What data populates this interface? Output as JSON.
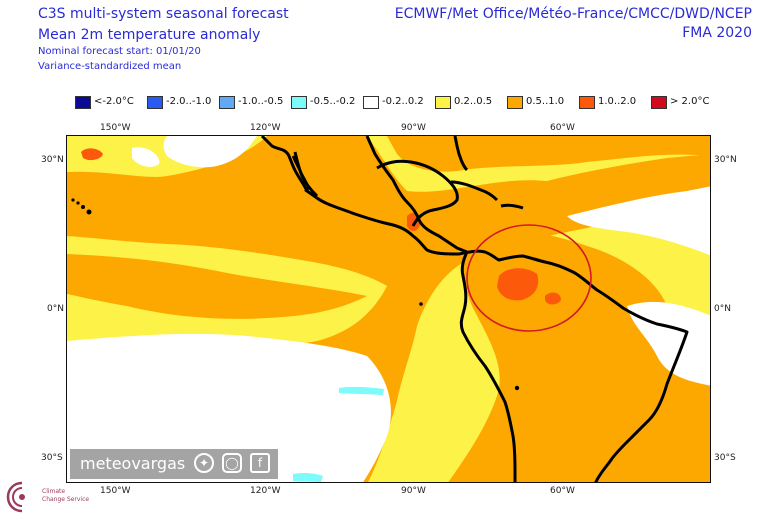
{
  "header": {
    "title_line1": "C3S multi-system seasonal forecast",
    "title_line2": "Mean 2m temperature anomaly",
    "nominal_start": "Nominal forecast start: 01/01/20",
    "variance_note": "Variance-standardized mean",
    "centres": "ECMWF/Met Office/Météo-France/CMCC/DWD/NCEP",
    "season": "FMA 2020"
  },
  "legend": [
    {
      "label": "<-2.0°C",
      "color": "#0a0a96"
    },
    {
      "label": "-2.0..-1.0",
      "color": "#2a5bf0"
    },
    {
      "label": "-1.0..-0.5",
      "color": "#61a9f2"
    },
    {
      "label": "-0.5..-0.2",
      "color": "#7dfafa"
    },
    {
      "label": "-0.2..0.2",
      "color": "#ffffff"
    },
    {
      "label": "0.2..0.5",
      "color": "#fdf248"
    },
    {
      "label": "0.5..1.0",
      "color": "#fca800"
    },
    {
      "label": "1.0..2.0",
      "color": "#fc5a0a"
    },
    {
      "label": "> 2.0°C",
      "color": "#d20a1e"
    }
  ],
  "axes": {
    "top_lon": [
      "150°W",
      "120°W",
      "90°W",
      "60°W"
    ],
    "bottom_lon": [
      "150°W",
      "120°W",
      "90°W",
      "60°W"
    ],
    "left_lat": [
      "30°N",
      "0°N",
      "30°S"
    ],
    "right_lat": [
      "30°N",
      "0°N",
      "30°S"
    ]
  },
  "watermark": {
    "name": "meteovargas",
    "icons": [
      "twitter-icon",
      "instagram-icon",
      "facebook-icon"
    ]
  },
  "logo": {
    "line1": "Climate",
    "line2": "Change Service"
  }
}
